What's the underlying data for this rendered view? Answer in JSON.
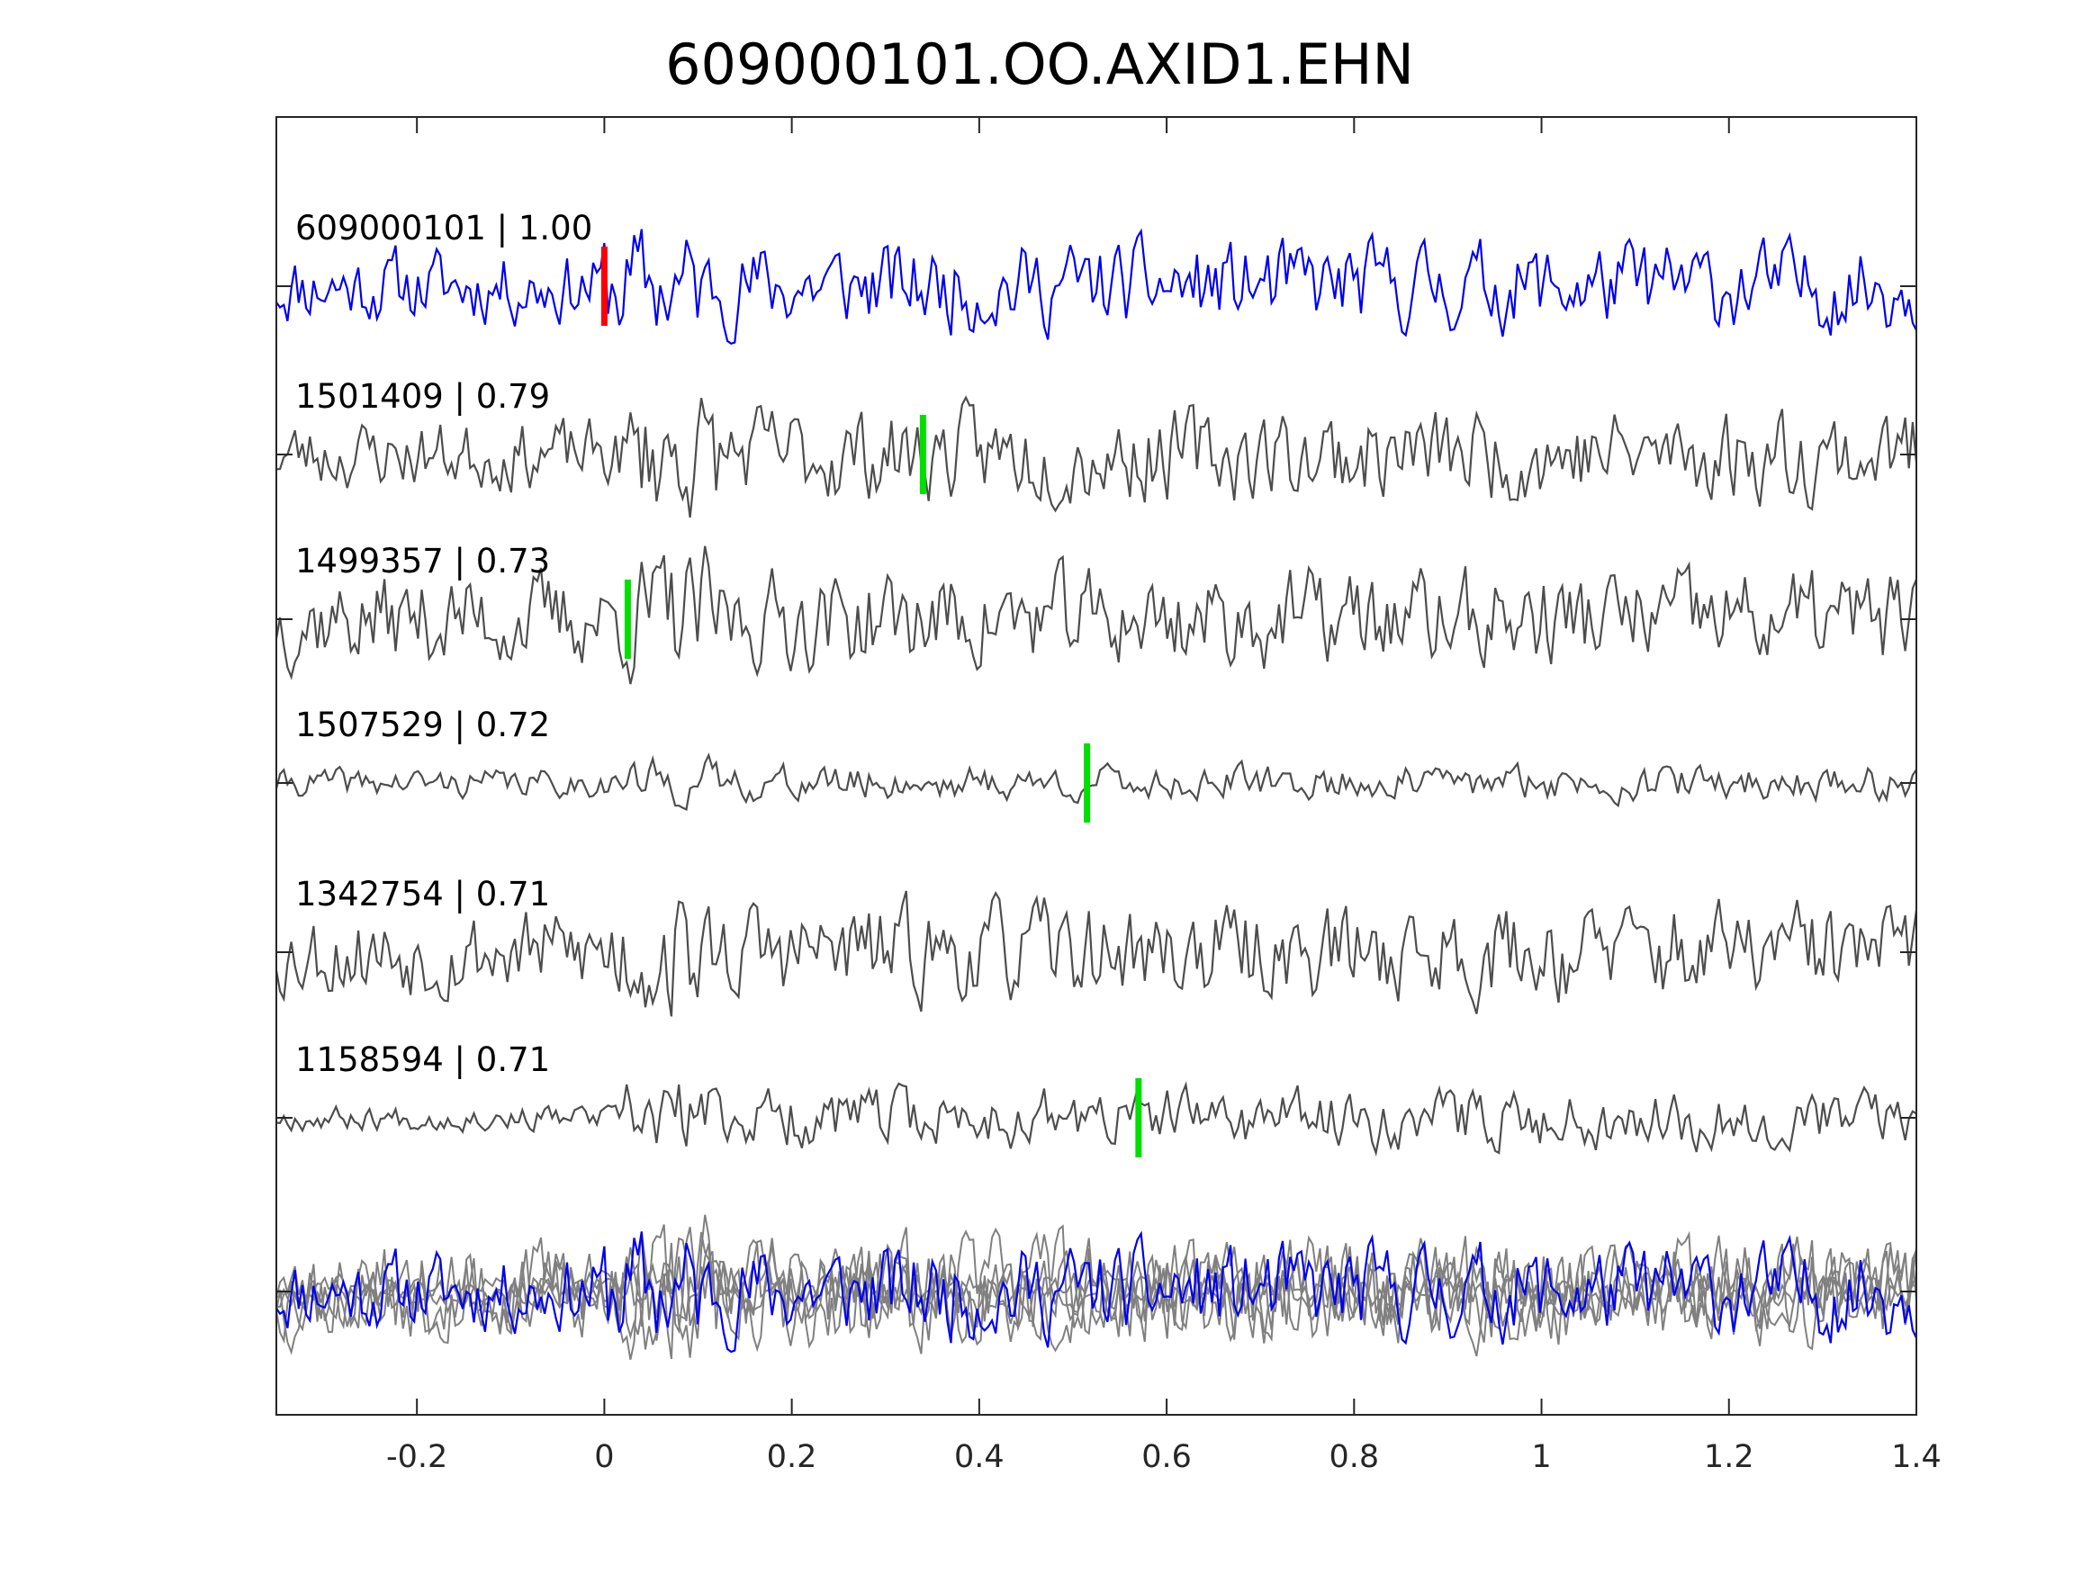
{
  "chart_data": {
    "type": "line",
    "title": "609000101.OO.AXID1.EHN",
    "xlabel": "",
    "ylabel": "",
    "xlim": [
      -0.35,
      1.4
    ],
    "xticks": [
      -0.2,
      0,
      0.2,
      0.4,
      0.6,
      0.8,
      1,
      1.2,
      1.4
    ],
    "xtick_labels": [
      "-0.2",
      "0",
      "0.2",
      "0.4",
      "0.6",
      "0.8",
      "1",
      "1.2",
      "1.4"
    ],
    "grid": false,
    "colors": {
      "template": "#0000ee",
      "match": "#4d4d4d",
      "stack": "#808080",
      "template_pick": "#ff0000",
      "match_pick": "#00e000"
    },
    "series": [
      {
        "name": "609000101",
        "label": "609000101 | 1.00",
        "role": "template",
        "pick_time": 0.0,
        "onset": 0.0,
        "seed": 11,
        "pre_amp": 0.75,
        "post_amp": 0.9
      },
      {
        "name": "1501409",
        "label": "1501409 | 0.79",
        "role": "match",
        "pick_time": 0.34,
        "onset": 0.02,
        "seed": 23,
        "pre_amp": 0.7,
        "post_amp": 0.95
      },
      {
        "name": "1499357",
        "label": "1499357 | 0.73",
        "role": "match",
        "pick_time": 0.025,
        "onset": 0.02,
        "seed": 37,
        "pre_amp": 0.95,
        "post_amp": 1.0
      },
      {
        "name": "1507529",
        "label": "1507529 | 0.72",
        "role": "match",
        "pick_time": 0.515,
        "onset": 0.02,
        "seed": 41,
        "pre_amp": 0.28,
        "post_amp": 0.35
      },
      {
        "name": "1342754",
        "label": "1342754 | 0.71",
        "role": "match",
        "pick_time": null,
        "onset": 0.0,
        "seed": 53,
        "pre_amp": 0.9,
        "post_amp": 1.0
      },
      {
        "name": "1158594",
        "label": "1158594 | 0.71",
        "role": "match",
        "pick_time": 0.57,
        "onset": 0.02,
        "seed": 67,
        "pre_amp": 0.25,
        "post_amp": 0.6
      }
    ]
  }
}
